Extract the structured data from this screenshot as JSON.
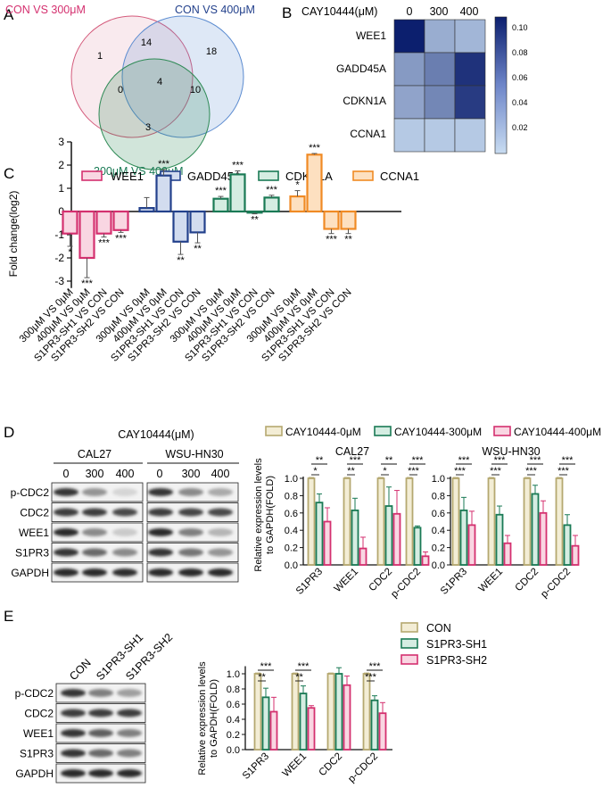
{
  "panel_labels": {
    "a": "A",
    "b": "B",
    "c": "C",
    "d": "D",
    "e": "E"
  },
  "colors": {
    "weeeRed": "#d4306f",
    "weeeFill": "#f9d6e2",
    "gaddBlue": "#23418c",
    "gaddFill": "#d2dcef",
    "cdknGreen": "#1a7a55",
    "cdknFill": "#d5ede2",
    "ccnaOrange": "#f08a24",
    "ccnaFill": "#fde0c0",
    "khaki": "#b5a870",
    "khakiFill": "#f3edd5",
    "vennRed": "#d45a7b",
    "vennBlue": "#5b8bd0",
    "vennGreen": "#2e8a55",
    "heatLow": "#c8dcf1",
    "heatHigh": "#0c1f6e"
  },
  "venn": {
    "labels": {
      "red": "CON VS 300μM",
      "blue": "CON VS 400μM",
      "green": "300μM VS 400μM"
    },
    "counts": {
      "only_red": "1",
      "red_blue": "14",
      "only_blue": "18",
      "center": "4",
      "red_green": "0",
      "blue_green": "10",
      "only_green": "3"
    }
  },
  "heatmap": {
    "title": "CAY10444(μM)",
    "columns": [
      "0",
      "300",
      "400"
    ],
    "rows": [
      "WEE1",
      "GADD45A",
      "CDKN1A",
      "CCNA1"
    ],
    "values": [
      [
        0.11,
        0.035,
        0.03
      ],
      [
        0.045,
        0.06,
        0.1
      ],
      [
        0.04,
        0.055,
        0.095
      ],
      [
        0.02,
        0.02,
        0.02
      ]
    ],
    "colorbar_ticks": [
      "0.10",
      "0.08",
      "0.06",
      "0.04",
      "0.02"
    ],
    "vmin": 0.01,
    "vmax": 0.11
  },
  "chart_data": [
    {
      "type": "bar",
      "panel": "C",
      "ylabel": "Fold change(log2)",
      "ylim": [
        -3.3,
        3
      ],
      "yticks": [
        "3",
        "2",
        "1",
        "0",
        "-1",
        "-2",
        "-3"
      ],
      "legend": [
        "WEE1",
        "GADD45A",
        "CDKN1A",
        "CCNA1"
      ],
      "categories": [
        "300μM VS 0μM",
        "400μM VS 0μM",
        "S1PR3-SH1 VS CON",
        "S1PR3-SH2 VS CON"
      ],
      "series": [
        {
          "name": "WEE1",
          "values": [
            -0.95,
            -2.0,
            -0.95,
            -0.8
          ],
          "errors": [
            0.55,
            0.85,
            0.15,
            0.1
          ],
          "sig": [
            "*",
            "***",
            "***",
            "***"
          ]
        },
        {
          "name": "GADD45A",
          "values": [
            0.15,
            1.55,
            -1.3,
            -0.9
          ],
          "errors": [
            0.45,
            0.25,
            0.55,
            0.45
          ],
          "sig": [
            "",
            "***",
            "**",
            "**"
          ]
        },
        {
          "name": "CDKN1A",
          "values": [
            0.55,
            1.6,
            -0.05,
            0.6
          ],
          "errors": [
            0.1,
            0.15,
            0.05,
            0.1
          ],
          "sig": [
            "***",
            "***",
            "**",
            "***"
          ]
        },
        {
          "name": "CCNA1",
          "values": [
            0.65,
            2.45,
            -0.75,
            -0.75
          ],
          "errors": [
            0.25,
            0.05,
            0.2,
            0.2
          ],
          "sig": [
            "*",
            "***",
            "***",
            "**"
          ]
        }
      ]
    },
    {
      "type": "bar",
      "panel": "D",
      "ylabel": "Relative expression levels\nto GAPDH(FOLD)",
      "ylim": [
        0,
        1
      ],
      "yticks": [
        "1.0",
        "0.8",
        "0.6",
        "0.4",
        "0.2",
        "0.0"
      ],
      "legend": [
        "CAY10444-0μM",
        "CAY10444-300μM",
        "CAY10444-400μM"
      ],
      "groups": [
        {
          "title": "CAL27",
          "categories": [
            "S1PR3",
            "WEE1",
            "CDC2",
            "p-CDC2"
          ],
          "series": [
            [
              1,
              1,
              1,
              1
            ],
            [
              0.72,
              0.63,
              0.68,
              0.43
            ],
            [
              0.5,
              0.19,
              0.59,
              0.1
            ]
          ],
          "errors": [
            [
              0.01,
              0.01,
              0.01,
              0.01
            ],
            [
              0.1,
              0.14,
              0.22,
              0.02
            ],
            [
              0.16,
              0.13,
              0.27,
              0.05
            ]
          ],
          "sig_top": [
            "**",
            "***",
            "**",
            "***"
          ],
          "sig_bottom": [
            "*",
            "**",
            "*",
            "***"
          ]
        },
        {
          "title": "WSU-HN30",
          "categories": [
            "S1PR3",
            "WEE1",
            "CDC2",
            "p-CDC2"
          ],
          "series": [
            [
              1,
              1,
              1,
              1
            ],
            [
              0.63,
              0.58,
              0.82,
              0.46
            ],
            [
              0.46,
              0.25,
              0.6,
              0.22
            ]
          ],
          "errors": [
            [
              0.01,
              0.01,
              0.01,
              0.01
            ],
            [
              0.15,
              0.1,
              0.1,
              0.12
            ],
            [
              0.16,
              0.09,
              0.14,
              0.12
            ]
          ],
          "sig_top": [
            "***",
            "***",
            "***",
            "***"
          ],
          "sig_bottom": [
            "***",
            "***",
            "***",
            "***"
          ]
        }
      ]
    },
    {
      "type": "bar",
      "panel": "E",
      "ylabel": "Relative expression levels\nto GAPDH(FOLD)",
      "ylim": [
        0,
        1.2
      ],
      "yticks": [
        "1.0",
        "0.8",
        "0.6",
        "0.4",
        "0.2",
        "0.0"
      ],
      "legend": [
        "CON",
        "S1PR3-SH1",
        "S1PR3-SH2"
      ],
      "categories": [
        "S1PR3",
        "WEE1",
        "CDC2",
        "p-CDC2"
      ],
      "series": [
        [
          1,
          1,
          1,
          1
        ],
        [
          0.69,
          0.74,
          1.0,
          0.65
        ],
        [
          0.5,
          0.55,
          0.85,
          0.48
        ]
      ],
      "errors": [
        [
          0.01,
          0.01,
          0.01,
          0.01
        ],
        [
          0.12,
          0.1,
          0.08,
          0.06
        ],
        [
          0.19,
          0.03,
          0.12,
          0.14
        ]
      ],
      "sig_top": [
        "***",
        "***",
        "",
        "***"
      ],
      "sig_bottom": [
        "**",
        "**",
        "",
        "***"
      ]
    }
  ],
  "blot_d": {
    "treatment": "CAY10444(μM)",
    "cell_lines": [
      "CAL27",
      "WSU-HN30"
    ],
    "doses": [
      "0",
      "300",
      "400"
    ],
    "rows": [
      "p-CDC2",
      "CDC2",
      "WEE1",
      "S1PR3",
      "GAPDH"
    ],
    "intensity": [
      [
        0.9,
        0.45,
        0.15
      ],
      [
        0.85,
        0.85,
        0.8
      ],
      [
        0.95,
        0.5,
        0.2
      ],
      [
        0.9,
        0.65,
        0.5
      ],
      [
        0.95,
        0.95,
        0.92
      ]
    ],
    "intensity2": [
      [
        0.9,
        0.5,
        0.35
      ],
      [
        0.85,
        0.82,
        0.8
      ],
      [
        0.95,
        0.55,
        0.3
      ],
      [
        0.9,
        0.6,
        0.45
      ],
      [
        0.95,
        0.95,
        0.95
      ]
    ]
  },
  "blot_e": {
    "lanes": [
      "CON",
      "S1PR3-SH1",
      "S1PR3-SH2"
    ],
    "rows": [
      "p-CDC2",
      "CDC2",
      "WEE1",
      "S1PR3",
      "GAPDH"
    ],
    "intensity": [
      [
        0.9,
        0.55,
        0.4
      ],
      [
        0.85,
        0.85,
        0.85
      ],
      [
        0.9,
        0.7,
        0.55
      ],
      [
        0.9,
        0.65,
        0.55
      ],
      [
        0.95,
        0.95,
        0.95
      ]
    ]
  }
}
